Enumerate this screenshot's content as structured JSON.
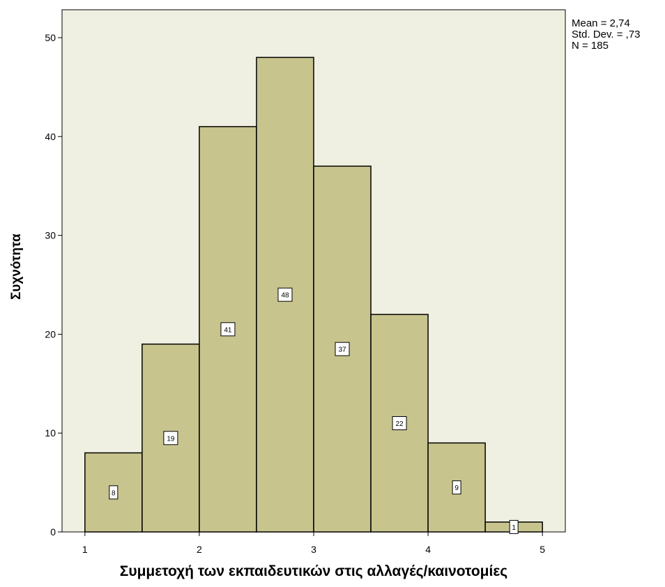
{
  "chart_data": {
    "type": "bar",
    "title": "",
    "xlabel": "Συμμετοχή των εκπαιδευτικών στις αλλαγές/καινοτομίες",
    "ylabel": "Συχνότητα",
    "bins": [
      {
        "from": 1.0,
        "to": 1.5,
        "value": 8,
        "label": "8"
      },
      {
        "from": 1.5,
        "to": 2.0,
        "value": 19,
        "label": "19"
      },
      {
        "from": 2.0,
        "to": 2.5,
        "value": 41,
        "label": "41"
      },
      {
        "from": 2.5,
        "to": 3.0,
        "value": 48,
        "label": "48"
      },
      {
        "from": 3.0,
        "to": 3.5,
        "value": 37,
        "label": "37"
      },
      {
        "from": 3.5,
        "to": 4.0,
        "value": 22,
        "label": "22"
      },
      {
        "from": 4.0,
        "to": 4.5,
        "value": 9,
        "label": "9"
      },
      {
        "from": 4.5,
        "to": 5.0,
        "value": 1,
        "label": "1"
      }
    ],
    "xlim": [
      0.8,
      5.2
    ],
    "ylim": [
      0,
      50
    ],
    "xticks": [
      1,
      2,
      3,
      4,
      5
    ],
    "xtick_labels": [
      "1",
      "2",
      "3",
      "4",
      "5"
    ],
    "yticks": [
      0,
      10,
      20,
      30,
      40,
      50
    ],
    "ytick_labels": [
      "0",
      "10",
      "20",
      "30",
      "40",
      "50"
    ],
    "grid": false,
    "colors": {
      "bar": "#c8c48e",
      "plot_bg": "#f0f0e2",
      "edge": "#000000"
    }
  },
  "stats": {
    "mean": "Mean = 2,74",
    "std": "Std. Dev. = ,73",
    "n": "N = 185"
  }
}
